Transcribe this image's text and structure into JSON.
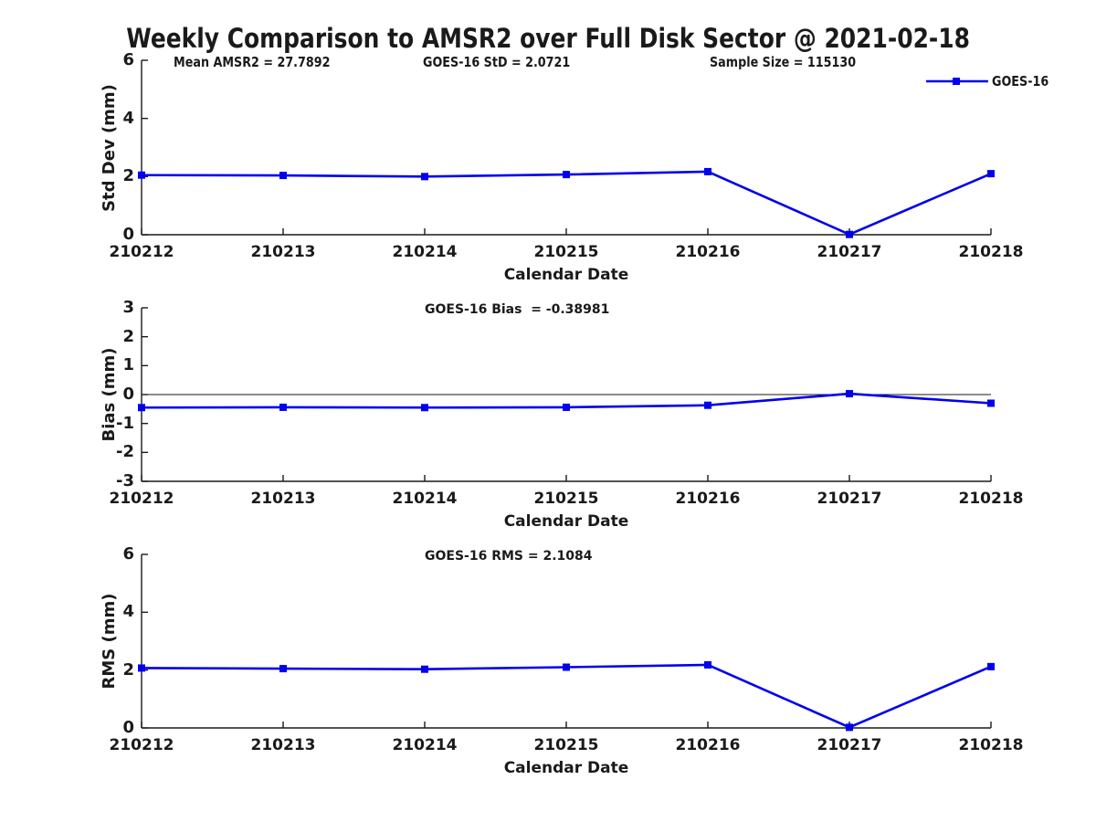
{
  "title": "Weekly Comparison to AMSR2 over Full Disk Sector @ 2021-02-18",
  "legend": {
    "label": "GOES-16",
    "position": "top-right-outside"
  },
  "colors": {
    "series_blue": "#0000ee",
    "axis": "#1a1a1a",
    "background": "#ffffff"
  },
  "chart_data": [
    {
      "type": "line",
      "id": "std-dev",
      "ylabel": "Std Dev (mm)",
      "xlabel": "Calendar Date",
      "ylim": [
        0,
        6
      ],
      "yticks": [
        0,
        2,
        4,
        6
      ],
      "categories": [
        "210212",
        "210213",
        "210214",
        "210215",
        "210216",
        "210217",
        "210218"
      ],
      "series": [
        {
          "name": "GOES-16",
          "values": [
            2.05,
            2.04,
            2.0,
            2.07,
            2.17,
            0.01,
            2.1
          ]
        }
      ],
      "annotations": [
        "Mean AMSR2 = 27.7892",
        "GOES-16 StD = 2.0721",
        "Sample Size = 115130"
      ],
      "stats": {
        "mean_amsr2": 27.7892,
        "goes16_std": 2.0721,
        "sample_size": 115130
      },
      "zero_line": false,
      "grid": false,
      "marker": "square"
    },
    {
      "type": "line",
      "id": "bias",
      "ylabel": "Bias (mm)",
      "xlabel": "Calendar Date",
      "ylim": [
        -3,
        3
      ],
      "yticks": [
        -3,
        -2,
        -1,
        0,
        1,
        2,
        3
      ],
      "categories": [
        "210212",
        "210213",
        "210214",
        "210215",
        "210216",
        "210217",
        "210218"
      ],
      "series": [
        {
          "name": "GOES-16",
          "values": [
            -0.45,
            -0.44,
            -0.45,
            -0.44,
            -0.37,
            0.03,
            -0.3
          ]
        }
      ],
      "annotations": [
        "GOES-16 Bias  = -0.38981"
      ],
      "stats": {
        "goes16_bias": -0.38981
      },
      "zero_line": true,
      "grid": false,
      "marker": "square"
    },
    {
      "type": "line",
      "id": "rms",
      "ylabel": "RMS (mm)",
      "xlabel": "Calendar Date",
      "ylim": [
        0,
        6
      ],
      "yticks": [
        0,
        2,
        4,
        6
      ],
      "categories": [
        "210212",
        "210213",
        "210214",
        "210215",
        "210216",
        "210217",
        "210218"
      ],
      "series": [
        {
          "name": "GOES-16",
          "values": [
            2.07,
            2.05,
            2.03,
            2.1,
            2.18,
            0.02,
            2.12
          ]
        }
      ],
      "annotations": [
        "GOES-16 RMS = 2.1084"
      ],
      "stats": {
        "goes16_rms": 2.1084
      },
      "zero_line": false,
      "grid": false,
      "marker": "square"
    }
  ]
}
